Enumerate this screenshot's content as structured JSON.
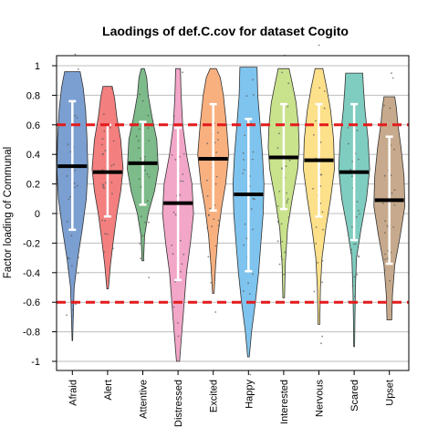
{
  "chart_data": {
    "type": "violin",
    "title": "Laodings of def.C.cov for dataset Cogito",
    "xlabel": "",
    "ylabel": "Factor loading of Communal",
    "ylim": [
      -1.05,
      1.05
    ],
    "y_ticks": [
      {
        "value": -1,
        "label": "-1"
      },
      {
        "value": -0.8,
        "label": "-0.8"
      },
      {
        "value": -0.6,
        "label": "-0.6"
      },
      {
        "value": -0.4,
        "label": "-0.4"
      },
      {
        "value": -0.2,
        "label": "-0.2"
      },
      {
        "value": 0,
        "label": "0"
      },
      {
        "value": 0.2,
        "label": "0.2"
      },
      {
        "value": 0.4,
        "label": "0.4"
      },
      {
        "value": 0.6,
        "label": "0.6"
      },
      {
        "value": 0.8,
        "label": "0.8"
      },
      {
        "value": 1,
        "label": "1"
      }
    ],
    "grid": true,
    "reference_lines": [
      0.6,
      -0.6
    ],
    "reference_line_color": "#e41a1c",
    "categories": [
      "Afraid",
      "Alert",
      "Attentive",
      "Distressed",
      "Excited",
      "Happy",
      "Interested",
      "Nervous",
      "Scared",
      "Upset"
    ],
    "series": [
      {
        "category": "Afraid",
        "color": "#7b9fd1",
        "mean": 0.32,
        "ci": [
          -0.11,
          0.76
        ],
        "range": [
          -0.86,
          0.96
        ],
        "density": [
          [
            -0.86,
            0.02
          ],
          [
            -0.7,
            0.06
          ],
          [
            -0.5,
            0.12
          ],
          [
            -0.3,
            0.35
          ],
          [
            -0.1,
            0.65
          ],
          [
            0.1,
            0.9
          ],
          [
            0.3,
            1.0
          ],
          [
            0.5,
            0.95
          ],
          [
            0.7,
            0.85
          ],
          [
            0.85,
            0.7
          ],
          [
            0.96,
            0.5
          ]
        ]
      },
      {
        "category": "Alert",
        "color": "#f47f7f",
        "mean": 0.28,
        "ci": [
          -0.02,
          0.6
        ],
        "range": [
          -0.51,
          0.86
        ],
        "density": [
          [
            -0.51,
            0.05
          ],
          [
            -0.35,
            0.18
          ],
          [
            -0.2,
            0.35
          ],
          [
            0.0,
            0.6
          ],
          [
            0.15,
            0.85
          ],
          [
            0.3,
            1.0
          ],
          [
            0.5,
            0.85
          ],
          [
            0.65,
            0.6
          ],
          [
            0.78,
            0.45
          ],
          [
            0.86,
            0.3
          ]
        ]
      },
      {
        "category": "Attentive",
        "color": "#7dbb8a",
        "mean": 0.34,
        "ci": [
          0.06,
          0.62
        ],
        "range": [
          -0.32,
          0.98
        ],
        "density": [
          [
            -0.32,
            0.05
          ],
          [
            -0.15,
            0.12
          ],
          [
            0.0,
            0.35
          ],
          [
            0.15,
            0.75
          ],
          [
            0.3,
            1.0
          ],
          [
            0.5,
            0.9
          ],
          [
            0.65,
            0.6
          ],
          [
            0.8,
            0.35
          ],
          [
            0.92,
            0.25
          ],
          [
            0.98,
            0.1
          ]
        ]
      },
      {
        "category": "Distressed",
        "color": "#f2a6c8",
        "mean": 0.07,
        "ci": [
          -0.45,
          0.58
        ],
        "range": [
          -1.0,
          0.98
        ],
        "density": [
          [
            -1.0,
            0.1
          ],
          [
            -0.8,
            0.25
          ],
          [
            -0.6,
            0.4
          ],
          [
            -0.4,
            0.55
          ],
          [
            -0.2,
            0.8
          ],
          [
            0.0,
            1.0
          ],
          [
            0.2,
            0.9
          ],
          [
            0.4,
            0.55
          ],
          [
            0.6,
            0.3
          ],
          [
            0.8,
            0.2
          ],
          [
            0.98,
            0.15
          ]
        ]
      },
      {
        "category": "Excited",
        "color": "#f9b07f",
        "mean": 0.37,
        "ci": [
          0.02,
          0.74
        ],
        "range": [
          -0.54,
          0.98
        ],
        "density": [
          [
            -0.54,
            0.05
          ],
          [
            -0.35,
            0.15
          ],
          [
            -0.15,
            0.3
          ],
          [
            0.05,
            0.55
          ],
          [
            0.2,
            0.8
          ],
          [
            0.4,
            1.0
          ],
          [
            0.6,
            0.85
          ],
          [
            0.8,
            0.65
          ],
          [
            0.92,
            0.45
          ],
          [
            0.98,
            0.2
          ]
        ]
      },
      {
        "category": "Happy",
        "color": "#7fc4ee",
        "mean": 0.13,
        "ci": [
          -0.39,
          0.64
        ],
        "range": [
          -0.97,
          0.99
        ],
        "density": [
          [
            -0.97,
            0.05
          ],
          [
            -0.8,
            0.2
          ],
          [
            -0.6,
            0.45
          ],
          [
            -0.4,
            0.65
          ],
          [
            -0.2,
            0.8
          ],
          [
            0.0,
            0.95
          ],
          [
            0.2,
            1.0
          ],
          [
            0.4,
            0.9
          ],
          [
            0.6,
            0.75
          ],
          [
            0.8,
            0.6
          ],
          [
            0.99,
            0.55
          ]
        ]
      },
      {
        "category": "Interested",
        "color": "#c9e28c",
        "mean": 0.38,
        "ci": [
          0.03,
          0.74
        ],
        "range": [
          -0.57,
          0.98
        ],
        "density": [
          [
            -0.57,
            0.05
          ],
          [
            -0.35,
            0.1
          ],
          [
            -0.1,
            0.25
          ],
          [
            0.1,
            0.55
          ],
          [
            0.3,
            0.9
          ],
          [
            0.45,
            1.0
          ],
          [
            0.6,
            0.95
          ],
          [
            0.75,
            0.8
          ],
          [
            0.88,
            0.55
          ],
          [
            0.98,
            0.35
          ]
        ]
      },
      {
        "category": "Nervous",
        "color": "#fde08a",
        "mean": 0.36,
        "ci": [
          -0.02,
          0.74
        ],
        "range": [
          -0.75,
          0.98
        ],
        "density": [
          [
            -0.75,
            0.05
          ],
          [
            -0.5,
            0.1
          ],
          [
            -0.3,
            0.2
          ],
          [
            -0.1,
            0.45
          ],
          [
            0.1,
            0.75
          ],
          [
            0.3,
            1.0
          ],
          [
            0.5,
            0.95
          ],
          [
            0.7,
            0.75
          ],
          [
            0.85,
            0.5
          ],
          [
            0.98,
            0.25
          ]
        ]
      },
      {
        "category": "Scared",
        "color": "#7fcdc0",
        "mean": 0.28,
        "ci": [
          -0.18,
          0.74
        ],
        "range": [
          -0.9,
          0.95
        ],
        "density": [
          [
            -0.9,
            0.03
          ],
          [
            -0.7,
            0.05
          ],
          [
            -0.5,
            0.08
          ],
          [
            -0.3,
            0.15
          ],
          [
            -0.1,
            0.45
          ],
          [
            0.1,
            0.8
          ],
          [
            0.3,
            1.0
          ],
          [
            0.5,
            0.9
          ],
          [
            0.7,
            0.7
          ],
          [
            0.85,
            0.6
          ],
          [
            0.95,
            0.55
          ]
        ]
      },
      {
        "category": "Upset",
        "color": "#c7aa8d",
        "mean": 0.09,
        "ci": [
          -0.34,
          0.52
        ],
        "range": [
          -0.72,
          0.79
        ],
        "density": [
          [
            -0.72,
            0.15
          ],
          [
            -0.55,
            0.2
          ],
          [
            -0.35,
            0.35
          ],
          [
            -0.15,
            0.7
          ],
          [
            0.05,
            1.0
          ],
          [
            0.25,
            0.95
          ],
          [
            0.45,
            0.75
          ],
          [
            0.6,
            0.55
          ],
          [
            0.72,
            0.45
          ],
          [
            0.79,
            0.35
          ]
        ]
      }
    ]
  }
}
